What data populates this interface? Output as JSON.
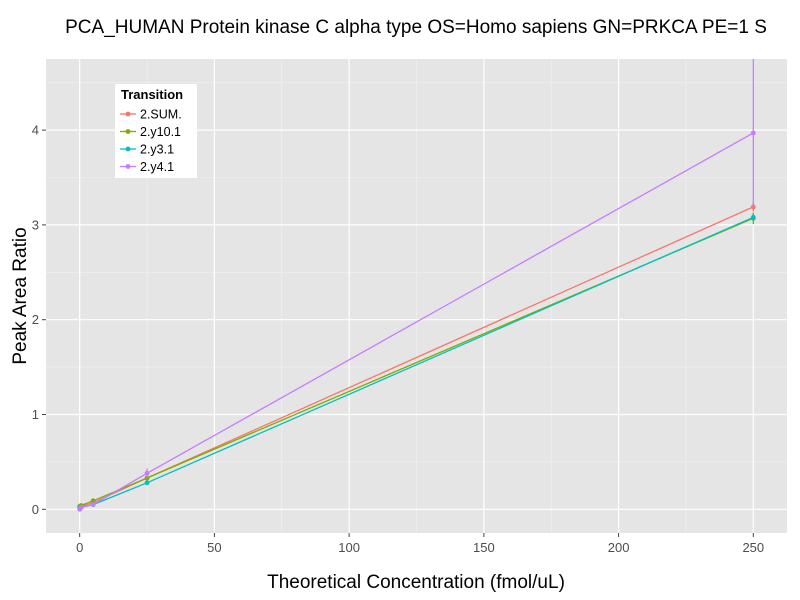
{
  "chart_data": {
    "type": "line",
    "title": "PCA_HUMAN Protein kinase C alpha type OS=Homo sapiens GN=PRKCA PE=1 S",
    "xlabel": "Theoretical Concentration (fmol/uL)",
    "ylabel": "Peak Area Ratio",
    "xlim": [
      -12.5,
      262.5
    ],
    "ylim": [
      -0.25,
      4.75
    ],
    "x_ticks": [
      0,
      50,
      100,
      150,
      200,
      250
    ],
    "y_ticks": [
      0,
      1,
      2,
      3,
      4
    ],
    "grid": true,
    "background": "#e5e5e5",
    "legend": {
      "title": "Transition",
      "position": "top-left"
    },
    "series": [
      {
        "name": "2.SUM.",
        "color": "#f8766d",
        "x": [
          0,
          0.5,
          5,
          25,
          250
        ],
        "y": [
          0.03,
          0.03,
          0.07,
          0.33,
          3.19
        ],
        "err": [
          0,
          0,
          0,
          0.02,
          0.05
        ]
      },
      {
        "name": "2.y10.1",
        "color": "#7cae00",
        "x": [
          0,
          0.5,
          5,
          25,
          250
        ],
        "y": [
          0.03,
          0.04,
          0.09,
          0.33,
          3.07
        ],
        "err": [
          0,
          0,
          0,
          0.02,
          0.06
        ]
      },
      {
        "name": "2.y3.1",
        "color": "#00bfc4",
        "x": [
          0,
          0.5,
          5,
          25,
          250
        ],
        "y": [
          0.01,
          0.02,
          0.05,
          0.28,
          3.08
        ],
        "err": [
          0,
          0,
          0,
          0.02,
          0.04
        ]
      },
      {
        "name": "2.y4.1",
        "color": "#c77cff",
        "x": [
          0,
          0.5,
          5,
          25,
          250
        ],
        "y": [
          0.0,
          0.02,
          0.05,
          0.38,
          3.97
        ],
        "err": [
          0,
          0,
          0,
          0.05,
          0.78
        ]
      }
    ]
  }
}
